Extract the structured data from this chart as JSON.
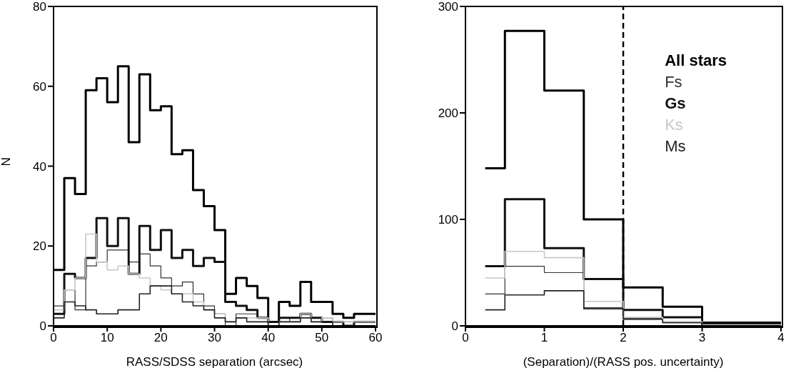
{
  "chart_data": [
    {
      "type": "histogram",
      "xlabel": "RASS/SDSS separation (arcsec)",
      "ylabel": "N",
      "bins": [
        0,
        2,
        4,
        6,
        8,
        10,
        12,
        14,
        16,
        18,
        20,
        22,
        24,
        26,
        28,
        30,
        32,
        34,
        36,
        38,
        40,
        42,
        44,
        46,
        48,
        50,
        52,
        54,
        56,
        58,
        60
      ],
      "xlim": [
        0,
        60
      ],
      "xticks": [
        0,
        10,
        20,
        30,
        40,
        50,
        60
      ],
      "ylim": [
        0,
        80
      ],
      "yticks": [
        0,
        20,
        40,
        60,
        80
      ],
      "series": [
        {
          "color": "#000000",
          "values": [
            14,
            37,
            33,
            59,
            62,
            56,
            65,
            46,
            63,
            54,
            55,
            43,
            44,
            34,
            30,
            24,
            8,
            12,
            10,
            7,
            1,
            6,
            5,
            11,
            6,
            6,
            3,
            2,
            3,
            3
          ]
        },
        {
          "color": "#333333",
          "values": [
            5,
            9,
            4,
            15,
            16,
            19,
            19,
            16,
            18,
            15,
            12,
            10,
            11,
            8,
            5,
            3,
            0,
            3,
            3,
            2,
            0,
            2,
            1,
            3,
            2,
            2,
            1,
            1,
            1,
            1
          ]
        },
        {
          "color": "#111111",
          "values": [
            3,
            13,
            12,
            17,
            27,
            20,
            27,
            13,
            25,
            19,
            24,
            17,
            19,
            15,
            17,
            16,
            6,
            5,
            4,
            2,
            1,
            2,
            2,
            3,
            2,
            1,
            1,
            0,
            1,
            1
          ]
        },
        {
          "color": "#c8c8c8",
          "values": [
            4,
            9,
            12,
            23,
            16,
            14,
            15,
            13,
            12,
            10,
            9,
            8,
            8,
            6,
            4,
            3,
            1,
            2,
            2,
            2,
            0,
            1,
            1,
            3,
            1,
            2,
            1,
            1,
            1,
            1
          ]
        },
        {
          "color": "#222222",
          "values": [
            2,
            6,
            5,
            4,
            3,
            3,
            4,
            4,
            8,
            10,
            10,
            8,
            6,
            5,
            4,
            2,
            1,
            2,
            1,
            1,
            0,
            1,
            1,
            2,
            1,
            1,
            0,
            0,
            0,
            0
          ]
        }
      ]
    },
    {
      "type": "histogram",
      "xlabel": "(Separation)/(RASS pos. uncertainty)",
      "bins": [
        0.25,
        0.5,
        1,
        1.5,
        2,
        2.5,
        3,
        3.5,
        4
      ],
      "xlim": [
        0,
        4
      ],
      "xticks": [
        0,
        1,
        2,
        3,
        4
      ],
      "ylim": [
        0,
        300
      ],
      "yticks": [
        0,
        100,
        200,
        300
      ],
      "legend": "top right",
      "ref_lines": [
        {
          "axis": "x",
          "value": 2,
          "color": "#000000",
          "line_style": "dashed"
        }
      ],
      "series": [
        {
          "name": "All stars",
          "color": "#000000",
          "values": [
            148,
            277,
            221,
            100,
            36,
            18,
            3,
            3
          ]
        },
        {
          "name": "Fs",
          "color": "#333333",
          "values": [
            30,
            56,
            50,
            17,
            7,
            3,
            1,
            1
          ]
        },
        {
          "name": "Gs",
          "color": "#111111",
          "values": [
            56,
            119,
            73,
            44,
            15,
            8,
            1,
            1
          ]
        },
        {
          "name": "Ks",
          "color": "#c8c8c8",
          "values": [
            45,
            70,
            64,
            23,
            8,
            4,
            1,
            1
          ]
        },
        {
          "name": "Ms",
          "color": "#222222",
          "values": [
            15,
            29,
            33,
            16,
            6,
            3,
            0,
            0
          ]
        }
      ]
    }
  ]
}
